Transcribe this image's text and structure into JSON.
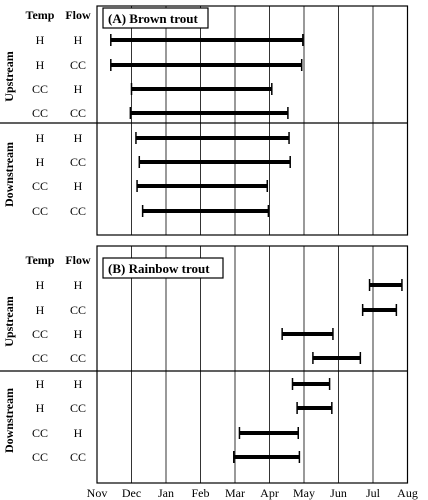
{
  "chart_data": {
    "type": "range-bar",
    "x_ticks": [
      "Nov",
      "Dec",
      "Jan",
      "Feb",
      "Mar",
      "Apr",
      "May",
      "Jun",
      "Jul",
      "Aug"
    ],
    "xlim": [
      "Nov",
      "Aug"
    ],
    "grid": "vertical at each month",
    "column_headers": {
      "temp": "Temp",
      "flow": "Flow"
    },
    "panels": [
      {
        "title": "(A) Brown trout",
        "groups": [
          {
            "label": "Upstream",
            "rows": [
              {
                "temp": "H",
                "flow": "H",
                "start": "Nov 13",
                "end": "Apr 30"
              },
              {
                "temp": "H",
                "flow": "CC",
                "start": "Nov 13",
                "end": "Apr 29"
              },
              {
                "temp": "CC",
                "flow": "H",
                "start": "Dec 1",
                "end": "Apr 3"
              },
              {
                "temp": "CC",
                "flow": "CC",
                "start": "Nov 30",
                "end": "Apr 17"
              }
            ]
          },
          {
            "label": "Downstream",
            "rows": [
              {
                "temp": "H",
                "flow": "H",
                "start": "Dec 5",
                "end": "Apr 18"
              },
              {
                "temp": "H",
                "flow": "CC",
                "start": "Dec 8",
                "end": "Apr 19"
              },
              {
                "temp": "CC",
                "flow": "H",
                "start": "Dec 6",
                "end": "Mar 30"
              },
              {
                "temp": "CC",
                "flow": "CC",
                "start": "Dec 11",
                "end": "Mar 31"
              }
            ]
          }
        ]
      },
      {
        "title": "(B) Rainbow trout",
        "groups": [
          {
            "label": "Upstream",
            "rows": [
              {
                "temp": "H",
                "flow": "H",
                "start": "Jun 28",
                "end": "Jul 27"
              },
              {
                "temp": "H",
                "flow": "CC",
                "start": "Jun 22",
                "end": "Jul 22"
              },
              {
                "temp": "CC",
                "flow": "H",
                "start": "Apr 12",
                "end": "May 27"
              },
              {
                "temp": "CC",
                "flow": "CC",
                "start": "May 9",
                "end": "Jun 20"
              }
            ]
          },
          {
            "label": "Downstream",
            "rows": [
              {
                "temp": "H",
                "flow": "H",
                "start": "Apr 21",
                "end": "May 24"
              },
              {
                "temp": "H",
                "flow": "CC",
                "start": "Apr 25",
                "end": "May 26"
              },
              {
                "temp": "CC",
                "flow": "H",
                "start": "Mar 5",
                "end": "Apr 26"
              },
              {
                "temp": "CC",
                "flow": "CC",
                "start": "Feb 28",
                "end": "Apr 27"
              }
            ]
          }
        ]
      }
    ]
  }
}
